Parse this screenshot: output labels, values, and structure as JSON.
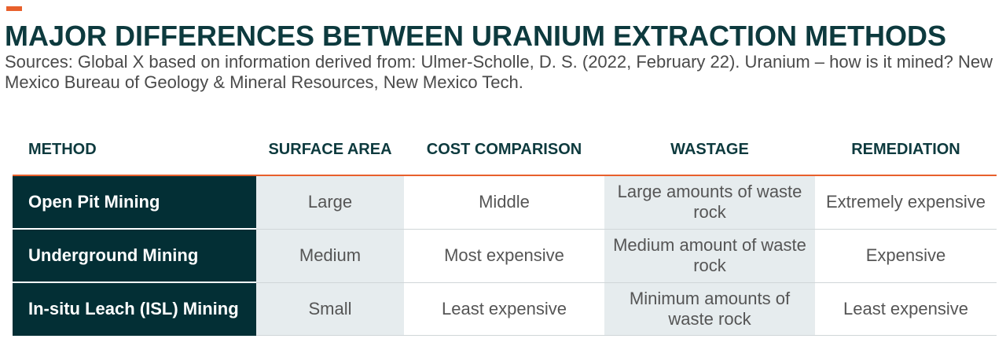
{
  "title": "MAJOR DIFFERENCES BETWEEN URANIUM EXTRACTION METHODS",
  "sources": "Sources: Global X based on information derived from: Ulmer-Scholle, D. S. (2022, February 22). Uranium – how is it mined? New Mexico Bureau of Geology & Mineral Resources, New Mexico Tech.",
  "colors": {
    "accent": "#e8602c",
    "title": "#0d3a3e",
    "method_bg": "#032f35",
    "shade_bg": "#e6ecee"
  },
  "table": {
    "headers": [
      "METHOD",
      "SURFACE AREA",
      "COST COMPARISON",
      "WASTAGE",
      "REMEDIATION"
    ],
    "rows": [
      [
        "Open Pit Mining",
        "Large",
        "Middle",
        "Large amounts of waste rock",
        "Extremely expensive"
      ],
      [
        "Underground Mining",
        "Medium",
        "Most expensive",
        "Medium amount of waste rock",
        "Expensive"
      ],
      [
        "In-situ Leach (ISL) Mining",
        "Small",
        "Least expensive",
        "Minimum amounts of waste rock",
        "Least expensive"
      ]
    ]
  }
}
